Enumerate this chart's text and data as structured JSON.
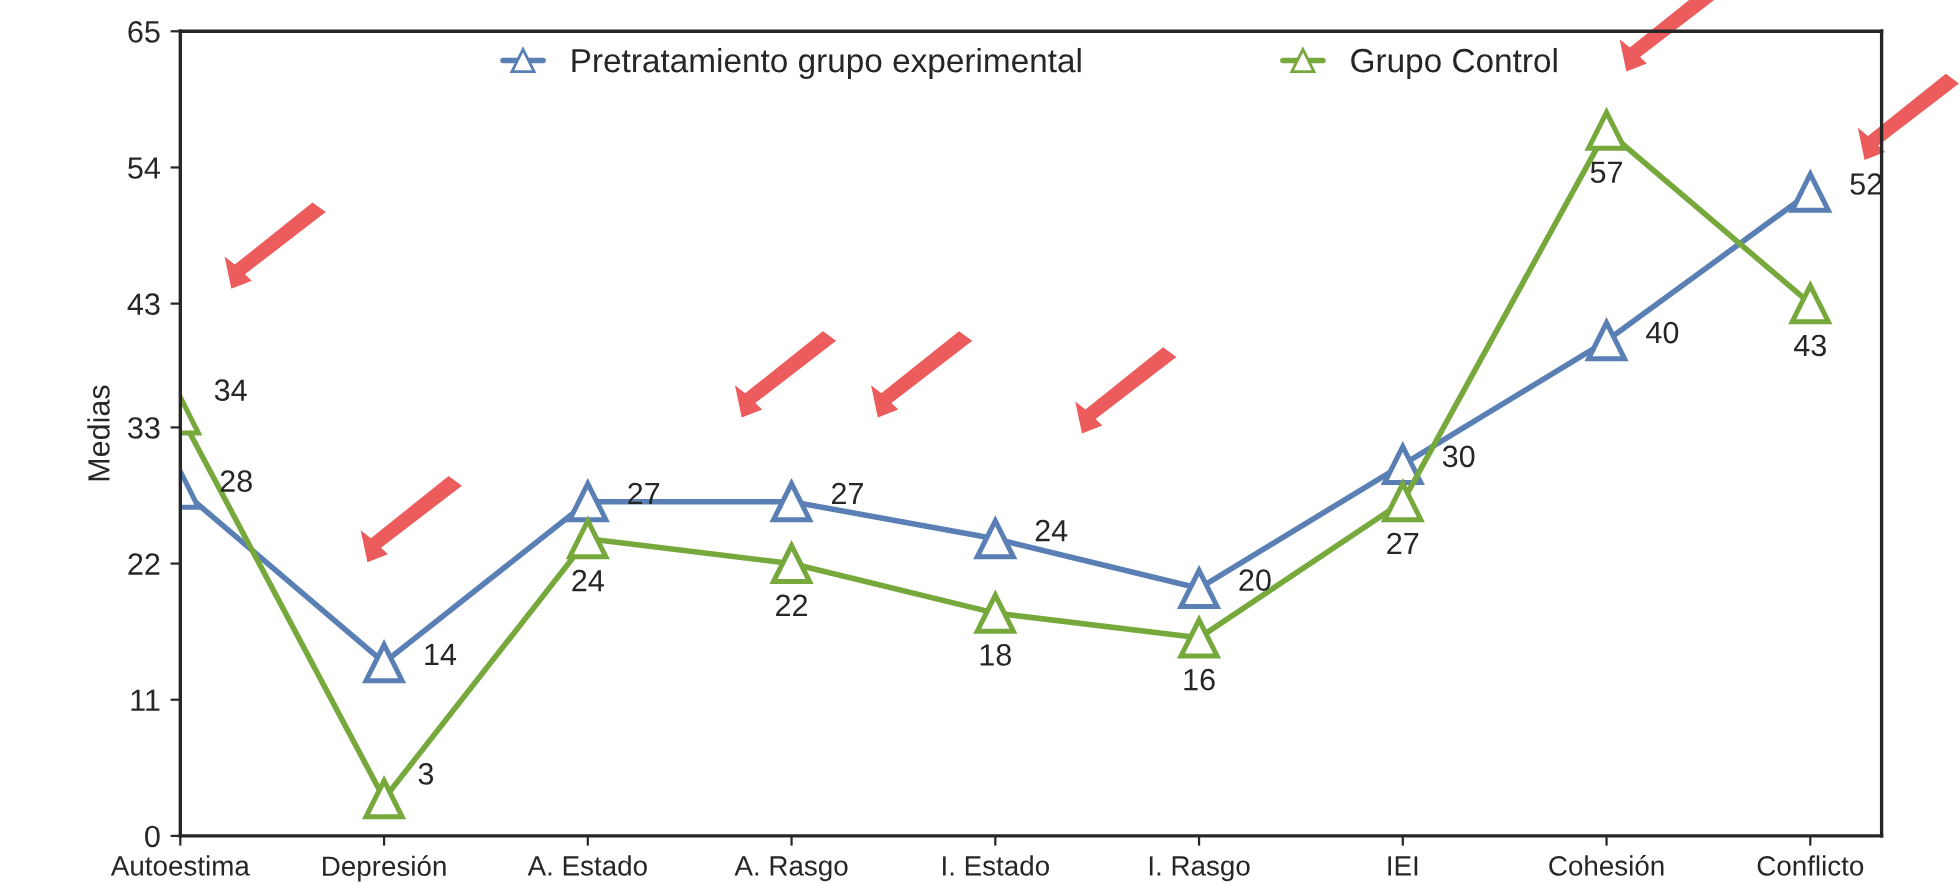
{
  "chart_data": {
    "type": "line",
    "ylabel": "Medias",
    "categories": [
      "Autoestima",
      "Depresión",
      "A. Estado",
      "A. Rasgo",
      "I. Estado",
      "I. Rasgo",
      "IEI",
      "Cohesión",
      "Conflicto"
    ],
    "series": [
      {
        "name": "Pretratamiento grupo experimental",
        "color": "#5a7fb5",
        "values": [
          28,
          14,
          27,
          27,
          24,
          20,
          30,
          40,
          52
        ]
      },
      {
        "name": "Grupo Control",
        "color": "#77a83c",
        "values": [
          34,
          3,
          24,
          22,
          18,
          16,
          27,
          57,
          43
        ]
      }
    ],
    "ylim": [
      0,
      65
    ],
    "yticks": [
      0,
      11,
      22,
      33,
      43,
      54,
      65
    ],
    "data_labels": true,
    "grid": false,
    "legend": "top",
    "marker": "triangle",
    "line_style": "solid"
  }
}
